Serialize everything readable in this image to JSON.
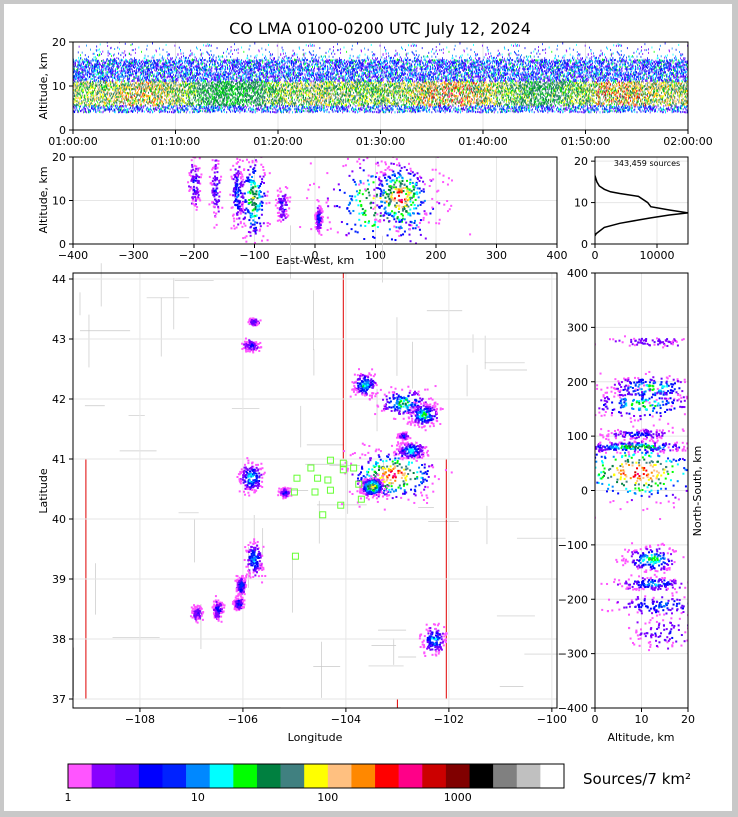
{
  "chart_data": [
    {
      "type": "heatmap",
      "panel": "time-altitude",
      "title": "CO LMA 0100-0200 UTC July 12, 2024",
      "ylabel": "Altitude, km",
      "ylim": [
        0,
        20
      ],
      "yticks": [
        "0",
        "10",
        "20"
      ],
      "xlim": [
        "01:00:00",
        "02:00:00"
      ],
      "xticks": [
        "01:00:00",
        "01:10:00",
        "01:20:00",
        "01:30:00",
        "01:40:00",
        "01:50:00",
        "02:00:00"
      ],
      "band": {
        "low_km": 4,
        "core_low_km": 5.5,
        "core_high_km": 11,
        "high_km": 16
      }
    },
    {
      "type": "heatmap",
      "panel": "east-west-altitude",
      "xlabel": "East-West, km",
      "ylabel": "Altitude, km",
      "xlim": [
        -400,
        400
      ],
      "ylim": [
        0,
        20
      ],
      "xticks": [
        "−400",
        "−300",
        "−200",
        "−100",
        "0",
        "100",
        "200",
        "300",
        "400"
      ],
      "yticks": [
        "0",
        "10",
        "20"
      ],
      "clusters": [
        {
          "x_km": -200,
          "z_km": 14,
          "dx": 5,
          "dz": 3,
          "level": 3
        },
        {
          "x_km": -165,
          "z_km": 13,
          "dx": 5,
          "dz": 4,
          "level": 3
        },
        {
          "x_km": -130,
          "z_km": 12,
          "dx": 5,
          "dz": 4,
          "level": 5
        },
        {
          "x_km": -103,
          "z_km": 10.5,
          "dx": 12,
          "dz": 5,
          "level": 10
        },
        {
          "x_km": -55,
          "z_km": 9,
          "dx": 5,
          "dz": 2,
          "level": 3
        },
        {
          "x_km": 5,
          "z_km": 6,
          "dx": 3,
          "dz": 1.5,
          "level": 4
        },
        {
          "x_km": 115,
          "z_km": 9.5,
          "dx": 55,
          "dz": 6,
          "level": 12
        },
        {
          "x_km": 140,
          "z_km": 11,
          "dx": 25,
          "dz": 4,
          "level": 15
        }
      ]
    },
    {
      "type": "line",
      "panel": "altitude-histogram",
      "annotation": "343,459 sources",
      "xlim": [
        0,
        15000
      ],
      "ylim": [
        0,
        21
      ],
      "xticks": [
        "0",
        "10000"
      ],
      "yticks": [
        "0",
        "10",
        "20"
      ],
      "x": [
        0,
        200,
        1500,
        4000,
        7000,
        9000,
        12000,
        15000,
        12000,
        9000,
        8500,
        7000,
        4000,
        2500,
        1500,
        700,
        300,
        100,
        0
      ],
      "y": [
        2,
        2.5,
        4,
        5,
        5.8,
        6.3,
        7,
        7.5,
        8.2,
        9,
        10,
        11.5,
        12.2,
        12.6,
        13.2,
        14,
        15,
        16,
        16.5
      ]
    },
    {
      "type": "heatmap",
      "panel": "plan-view",
      "xlabel": "Longitude",
      "ylabel": "Latitude",
      "xlim": [
        -109.3,
        -99.9
      ],
      "ylim": [
        36.85,
        44.1
      ],
      "xticks": [
        "−108",
        "−106",
        "−104",
        "−102",
        "−100"
      ],
      "yticks": [
        "37",
        "38",
        "39",
        "40",
        "41",
        "42",
        "43",
        "44"
      ],
      "clusters": [
        {
          "lon": -105.8,
          "lat": 43.3,
          "dlon": 0.05,
          "dlat": 0.03,
          "level": 3
        },
        {
          "lon": -105.85,
          "lat": 42.9,
          "dlon": 0.08,
          "dlat": 0.05,
          "level": 3
        },
        {
          "lon": -103.65,
          "lat": 42.25,
          "dlon": 0.12,
          "dlat": 0.1,
          "level": 7
        },
        {
          "lon": -102.9,
          "lat": 41.95,
          "dlon": 0.25,
          "dlat": 0.12,
          "level": 8
        },
        {
          "lon": -102.5,
          "lat": 41.75,
          "dlon": 0.15,
          "dlat": 0.1,
          "level": 8
        },
        {
          "lon": -102.9,
          "lat": 41.4,
          "dlon": 0.05,
          "dlat": 0.03,
          "level": 4
        },
        {
          "lon": -102.75,
          "lat": 41.15,
          "dlon": 0.15,
          "dlat": 0.07,
          "level": 7
        },
        {
          "lon": -103.1,
          "lat": 40.75,
          "dlon": 0.45,
          "dlat": 0.22,
          "level": 15
        },
        {
          "lon": -103.5,
          "lat": 40.55,
          "dlon": 0.12,
          "dlat": 0.08,
          "level": 12
        },
        {
          "lon": -105.85,
          "lat": 40.7,
          "dlon": 0.12,
          "dlat": 0.12,
          "level": 7
        },
        {
          "lon": -105.2,
          "lat": 40.45,
          "dlon": 0.06,
          "dlat": 0.04,
          "level": 4
        },
        {
          "lon": -105.8,
          "lat": 39.35,
          "dlon": 0.08,
          "dlat": 0.15,
          "level": 6
        },
        {
          "lon": -106.05,
          "lat": 38.9,
          "dlon": 0.05,
          "dlat": 0.08,
          "level": 5
        },
        {
          "lon": -106.1,
          "lat": 38.6,
          "dlon": 0.05,
          "dlat": 0.05,
          "level": 5
        },
        {
          "lon": -106.5,
          "lat": 38.5,
          "dlon": 0.05,
          "dlat": 0.08,
          "level": 4
        },
        {
          "lon": -106.9,
          "lat": 38.45,
          "dlon": 0.05,
          "dlat": 0.06,
          "level": 3
        },
        {
          "lon": -102.3,
          "lat": 38.0,
          "dlon": 0.12,
          "dlat": 0.12,
          "level": 6
        }
      ],
      "stations": [
        {
          "lon": -104.3,
          "lat": 40.98
        },
        {
          "lon": -104.05,
          "lat": 40.93
        },
        {
          "lon": -104.68,
          "lat": 40.85
        },
        {
          "lon": -104.05,
          "lat": 40.82
        },
        {
          "lon": -103.85,
          "lat": 40.85
        },
        {
          "lon": -104.95,
          "lat": 40.68
        },
        {
          "lon": -104.55,
          "lat": 40.68
        },
        {
          "lon": -104.35,
          "lat": 40.65
        },
        {
          "lon": -103.75,
          "lat": 40.58
        },
        {
          "lon": -105.0,
          "lat": 40.45
        },
        {
          "lon": -104.6,
          "lat": 40.45
        },
        {
          "lon": -104.3,
          "lat": 40.48
        },
        {
          "lon": -103.7,
          "lat": 40.33
        },
        {
          "lon": -104.1,
          "lat": 40.23
        },
        {
          "lon": -104.45,
          "lat": 40.07
        },
        {
          "lon": -104.98,
          "lat": 39.38
        }
      ]
    },
    {
      "type": "heatmap",
      "panel": "altitude-north-south",
      "xlabel": "Altitude, km",
      "ylabel": "North-South, km",
      "xlim": [
        0,
        20
      ],
      "ylim": [
        -400,
        400
      ],
      "xticks": [
        "0",
        "10",
        "20"
      ],
      "yticks": [
        "−400",
        "−300",
        "−200",
        "−100",
        "0",
        "100",
        "200",
        "300",
        "400"
      ],
      "clusters": [
        {
          "z_km": 12,
          "y_km": 190,
          "dz": 5,
          "dy": 12,
          "level": 8
        },
        {
          "z_km": 10,
          "y_km": 160,
          "dz": 6,
          "dy": 15,
          "level": 8
        },
        {
          "z_km": 9,
          "y_km": 105,
          "dz": 4,
          "dy": 5,
          "level": 4
        },
        {
          "z_km": 9,
          "y_km": 82,
          "dz": 6,
          "dy": 5,
          "level": 10
        },
        {
          "z_km": 9,
          "y_km": 35,
          "dz": 8,
          "dy": 30,
          "level": 15
        },
        {
          "z_km": 12,
          "y_km": -125,
          "dz": 3,
          "dy": 12,
          "level": 8
        },
        {
          "z_km": 12,
          "y_km": -170,
          "dz": 4,
          "dy": 6,
          "level": 6
        },
        {
          "z_km": 14,
          "y_km": -210,
          "dz": 5,
          "dy": 10,
          "level": 5
        },
        {
          "z_km": 15,
          "y_km": -260,
          "dz": 4,
          "dy": 15,
          "level": 3
        },
        {
          "z_km": 12,
          "y_km": 275,
          "dz": 5,
          "dy": 5,
          "level": 2
        }
      ]
    },
    {
      "type": "colorbar",
      "label": "Sources/7 km²",
      "tick_labels": [
        "1",
        "10",
        "100",
        "1000"
      ],
      "colors": [
        "#ff55ff",
        "#8800ff",
        "#6600ff",
        "#0000ff",
        "#0022ff",
        "#0088ff",
        "#00ffff",
        "#00ff00",
        "#008040",
        "#408080",
        "#ffff00",
        "#ffc080",
        "#ff8800",
        "#ff0000",
        "#ff0088",
        "#cc0000",
        "#800000",
        "#000000",
        "#808080",
        "#c0c0c0",
        "#ffffff"
      ]
    }
  ]
}
